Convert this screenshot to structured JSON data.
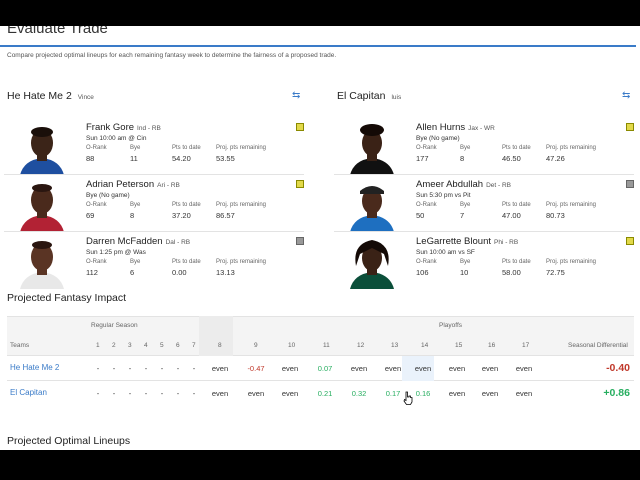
{
  "page": {
    "title": "Evaluate Trade",
    "subtitle": "Compare projected optimal lineups for each remaining fantasy week to determine the fairness of a proposed trade."
  },
  "teams": [
    {
      "name": "He Hate Me 2",
      "owner": "Vince",
      "players": [
        {
          "name": "Frank Gore",
          "pos": "Ind - RB",
          "game": "Sun 10:00 am @ Cin",
          "orank": "88",
          "bye": "11",
          "pts": "54.20",
          "proj": "53.55",
          "note_color": "#e2d94a"
        },
        {
          "name": "Adrian Peterson",
          "pos": "Ari - RB",
          "game": "Bye (No game)",
          "orank": "69",
          "bye": "8",
          "pts": "37.20",
          "proj": "86.57",
          "note_color": "#e2d94a"
        },
        {
          "name": "Darren McFadden",
          "pos": "Dal - RB",
          "game": "Sun 1:25 pm @ Was",
          "orank": "112",
          "bye": "6",
          "pts": "0.00",
          "proj": "13.13",
          "note_color": "#999999"
        }
      ]
    },
    {
      "name": "El Capitan",
      "owner": "luis",
      "players": [
        {
          "name": "Allen Hurns",
          "pos": "Jax - WR",
          "game": "Bye (No game)",
          "orank": "177",
          "bye": "8",
          "pts": "46.50",
          "proj": "47.26",
          "note_color": "#e2d94a"
        },
        {
          "name": "Ameer Abdullah",
          "pos": "Det - RB",
          "game": "Sun 5:30 pm vs Pit",
          "orank": "50",
          "bye": "7",
          "pts": "47.00",
          "proj": "80.73",
          "note_color": "#999999"
        },
        {
          "name": "LeGarrette Blount",
          "pos": "Phi - RB",
          "game": "Sun 10:00 am vs SF",
          "orank": "106",
          "bye": "10",
          "pts": "58.00",
          "proj": "72.75",
          "note_color": "#e2d94a"
        }
      ]
    }
  ],
  "stat_labels": {
    "orank": "O-Rank",
    "bye": "Bye",
    "pts": "Pts to date",
    "proj": "Proj. pts remaining"
  },
  "impact": {
    "title": "Projected Fantasy Impact",
    "group_regular": "Regular Season",
    "group_playoffs": "Playoffs",
    "teams_label": "Teams",
    "diff_label": "Seasonal Differential",
    "weeks": [
      "1",
      "2",
      "3",
      "4",
      "5",
      "6",
      "7",
      "8",
      "9",
      "10",
      "11",
      "12",
      "13",
      "14",
      "15",
      "16",
      "17"
    ],
    "rows": [
      {
        "team": "He Hate Me 2",
        "cells": [
          "-",
          "-",
          "-",
          "-",
          "-",
          "-",
          "-",
          "even",
          "-0.47",
          "even",
          "0.07",
          "even",
          "even",
          "even",
          "even",
          "even",
          "even"
        ],
        "diff": "-0.40"
      },
      {
        "team": "El Capitan",
        "cells": [
          "-",
          "-",
          "-",
          "-",
          "-",
          "-",
          "-",
          "even",
          "even",
          "even",
          "0.21",
          "0.32",
          "0.17",
          "0.16",
          "even",
          "even",
          "even"
        ],
        "diff": "+0.86"
      }
    ]
  },
  "lineups_title": "Projected Optimal Lineups",
  "icons": {
    "swap": "swap-arrows-icon",
    "note": "note-icon",
    "cursor": "hand-pointer-icon"
  },
  "colors": {
    "accent": "#3a7bc8",
    "negative": "#c0392b",
    "positive": "#27ae60",
    "note_yellow": "#e2d94a",
    "note_gray": "#999999"
  }
}
